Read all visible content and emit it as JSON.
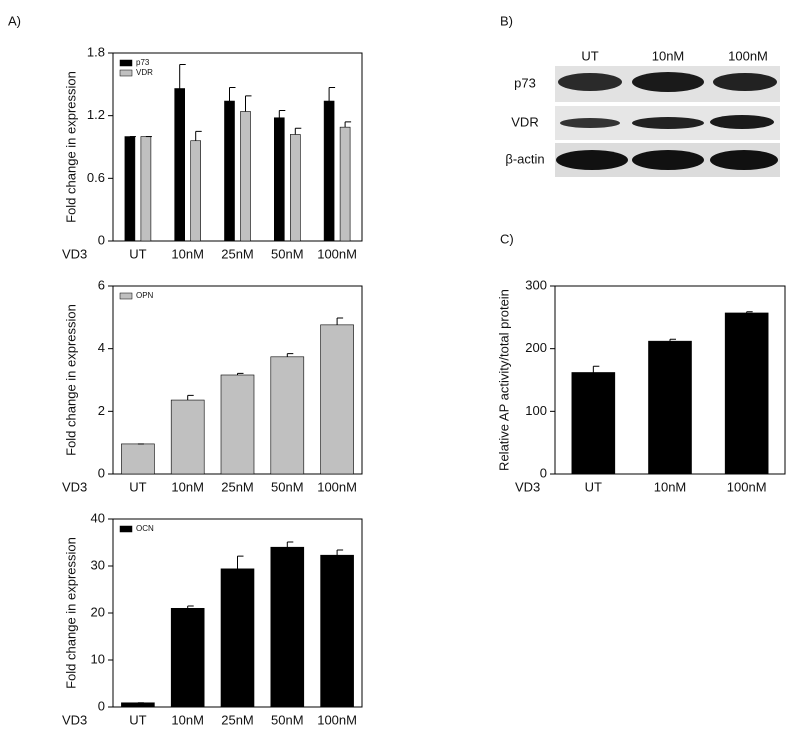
{
  "panel_labels": [
    "A)",
    "B)",
    "C)"
  ],
  "blot": {
    "lanes": [
      "UT",
      "10nM",
      "100nM"
    ],
    "rows": [
      "p73",
      "VDR",
      "β-actin"
    ]
  },
  "chart_data": [
    {
      "type": "bar",
      "y_label": "Fold change in expression",
      "x_label": "VD3",
      "categories": [
        "UT",
        "10nM",
        "25nM",
        "50nM",
        "100nM"
      ],
      "series": [
        {
          "name": "p73",
          "color": "#000000",
          "values": [
            1.0,
            1.46,
            1.34,
            1.18,
            1.34
          ],
          "errors": [
            0,
            0.23,
            0.13,
            0.07,
            0.13
          ]
        },
        {
          "name": "VDR",
          "color": "#c0c0c0",
          "values": [
            1.0,
            0.96,
            1.24,
            1.02,
            1.09
          ],
          "errors": [
            0,
            0.09,
            0.15,
            0.06,
            0.05
          ]
        }
      ],
      "ylim": [
        0,
        1.8
      ],
      "yticks": [
        0,
        0.6,
        1.2,
        1.8
      ],
      "legend": "top-left"
    },
    {
      "type": "bar",
      "y_label": "Fold change in expression",
      "x_label": "VD3",
      "categories": [
        "UT",
        "10nM",
        "25nM",
        "50nM",
        "100nM"
      ],
      "series": [
        {
          "name": "OPN",
          "color": "#c0c0c0",
          "values": [
            0.96,
            2.36,
            3.16,
            3.74,
            4.76
          ],
          "errors": [
            0,
            0.15,
            0.05,
            0.1,
            0.22
          ]
        }
      ],
      "ylim": [
        0,
        6
      ],
      "yticks": [
        0,
        2,
        4,
        6
      ],
      "legend": "top-left"
    },
    {
      "type": "bar",
      "y_label": "Fold change in expression",
      "x_label": "VD3",
      "categories": [
        "UT",
        "10nM",
        "25nM",
        "50nM",
        "100nM"
      ],
      "series": [
        {
          "name": "OCN",
          "color": "#000000",
          "values": [
            0.9,
            21,
            29.4,
            34,
            32.3
          ],
          "errors": [
            0,
            0.5,
            2.7,
            1.1,
            1.1
          ]
        }
      ],
      "ylim": [
        0,
        40
      ],
      "yticks": [
        0,
        10,
        20,
        30,
        40
      ],
      "legend": "top-left"
    },
    {
      "type": "bar",
      "y_label": "Relative AP activity/total protein",
      "x_label": "VD3",
      "categories": [
        "UT",
        "10nM",
        "100nM"
      ],
      "values": [
        162,
        212,
        257
      ],
      "errors": [
        10,
        3,
        2
      ],
      "color": "#000000",
      "ylim": [
        0,
        300
      ],
      "yticks": [
        0,
        100,
        200,
        300
      ]
    }
  ]
}
